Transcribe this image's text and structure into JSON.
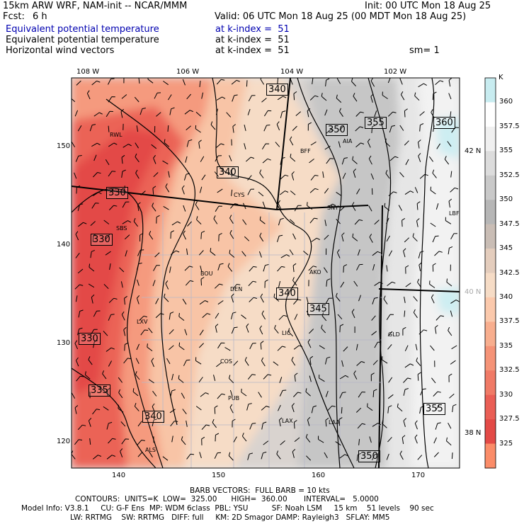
{
  "header": {
    "model_line": "15km ARW WRF, NAM-init -- NCAR/MMM",
    "init_line": "Init: 00 UTC Mon 18 Aug 25",
    "fcst_label": "Fcst:",
    "fcst_value": "6 h",
    "valid_line": "Valid: 06 UTC Mon 18 Aug 25 (00 MDT Mon 18 Aug 25)",
    "fields": [
      {
        "name": "Equivalent potential temperature",
        "level": "at k-index =  51"
      },
      {
        "name": "Equivalent potential temperature",
        "level": "at k-index =  51"
      },
      {
        "name": "Horizontal wind vectors",
        "level": "at k-index =  51"
      }
    ],
    "smoothing": "sm= 1"
  },
  "map": {
    "lon_labels": [
      "108 W",
      "106 W",
      "104 W",
      "102 W"
    ],
    "lat_labels": [
      "42 N",
      "40 N",
      "38 N"
    ],
    "grid_y_labels": [
      "150",
      "140",
      "130",
      "120"
    ],
    "grid_x_labels": [
      "140",
      "150",
      "160",
      "170"
    ],
    "stations": [
      "RWL",
      "BFF",
      "AIA",
      "CYS",
      "SNY",
      "LBF",
      "SBS",
      "BOU",
      "AKO",
      "DEN",
      "LXV",
      "LIC",
      "GLD",
      "COS",
      "PUB",
      "LAX",
      "LAA",
      "ALS"
    ],
    "contour_labels": [
      "340",
      "350",
      "355",
      "360",
      "340",
      "330",
      "330",
      "340",
      "345",
      "330",
      "335",
      "340",
      "355",
      "350"
    ]
  },
  "colorbar": {
    "unit": "K",
    "ticks": [
      "360",
      "357.5",
      "355",
      "352.5",
      "350",
      "347.5",
      "345",
      "342.5",
      "340",
      "337.5",
      "335",
      "332.5",
      "330",
      "327.5",
      "325"
    ],
    "colors": [
      "#ffffff",
      "#f0f0f0",
      "#dcdcdc",
      "#c9c9c9",
      "#b6b6b6",
      "#c9bdb5",
      "#e4cdbd",
      "#f6dcc6",
      "#fbc9ac",
      "#f8ae8e",
      "#f59377",
      "#f07a66",
      "#ea5e55",
      "#e34a46",
      "#fb8c68"
    ],
    "top_color": "#c8ecf0"
  },
  "footer": {
    "barb_line": "BARB VECTORS:  FULL BARB = 10 kts",
    "contours_line": "CONTOURS:  UNITS=K  LOW=  325.00      HIGH=  360.00       INTERVAL=   5.0000",
    "model_info_line": "Model Info: V3.8.1     CU: G-F Ens  MP: WDM 6class  PBL: YSU          SF: Noah LSM     15 km    51 levels    90 sec",
    "physics_line": "LW: RRTMG    SW: RRTMG   DIFF: full     KM: 2D Smagor DAMP: Rayleigh3   SFLAY: MM5"
  }
}
